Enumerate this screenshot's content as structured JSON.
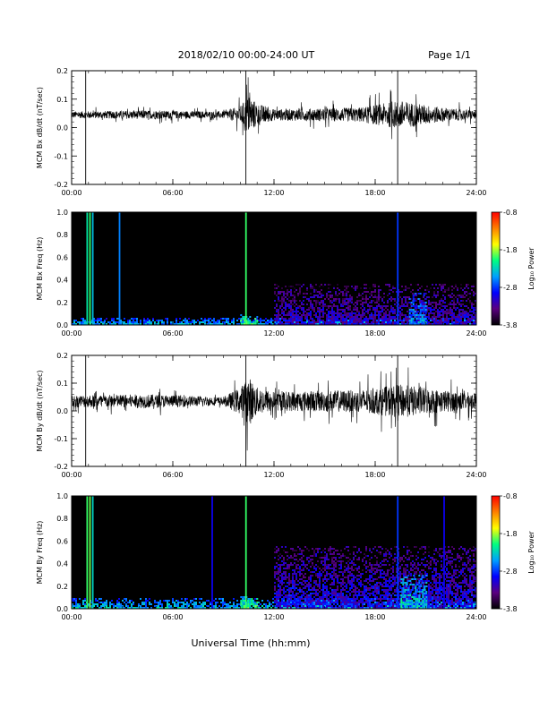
{
  "header": {
    "title": "2018/02/10  00:00-24:00 UT",
    "page": "Page 1/1"
  },
  "footer": {
    "xlabel": "Universal Time (hh:mm)"
  },
  "colorbar": {
    "label": "Log₁₀ Power",
    "ticks": [
      "-0.8",
      "-1.8",
      "-2.8",
      "-3.8"
    ],
    "range": [
      -3.8,
      -0.8
    ],
    "stops": [
      "#000000",
      "#5a0080",
      "#0000ff",
      "#00a0ff",
      "#00ff80",
      "#ffff00",
      "#ff8000",
      "#ff0000"
    ]
  },
  "chart_data": [
    {
      "type": "line",
      "ylabel": "MCM Bx dB/dt (nT/sec)",
      "xlim": [
        "00:00",
        "24:00"
      ],
      "x_ticks": [
        "00:00",
        "06:00",
        "12:00",
        "18:00",
        "24:00"
      ],
      "ylim": [
        -0.2,
        0.2
      ],
      "y_ticks": [
        "0.2",
        "0.1",
        "0.0",
        "-0.1",
        "-0.2"
      ],
      "baseline": 0.045,
      "noise_envelope": [
        {
          "x": "00:00",
          "amp": 0.012
        },
        {
          "x": "04:30",
          "amp": 0.015
        },
        {
          "x": "09:00",
          "amp": 0.012
        },
        {
          "x": "10:00",
          "amp": 0.03
        },
        {
          "x": "10:30",
          "amp": 0.07
        },
        {
          "x": "11:00",
          "amp": 0.04
        },
        {
          "x": "12:00",
          "amp": 0.02
        },
        {
          "x": "17:00",
          "amp": 0.025
        },
        {
          "x": "19:30",
          "amp": 0.05
        },
        {
          "x": "22:00",
          "amp": 0.025
        },
        {
          "x": "24:00",
          "amp": 0.015
        }
      ],
      "spikes": [
        {
          "x": "00:50"
        },
        {
          "x": "10:20"
        },
        {
          "x": "19:20"
        }
      ]
    },
    {
      "type": "heatmap",
      "ylabel": "MCM Bx Freq (Hz)",
      "xlim": [
        "00:00",
        "24:00"
      ],
      "x_ticks": [
        "00:00",
        "06:00",
        "12:00",
        "18:00",
        "24:00"
      ],
      "ylim": [
        0,
        1.0
      ],
      "y_ticks": [
        "1.0",
        "0.8",
        "0.6",
        "0.4",
        "0.2",
        "0.0"
      ],
      "vertical_lines": [
        {
          "x": "00:55",
          "power": -2.2
        },
        {
          "x": "01:05",
          "power": -2.0
        },
        {
          "x": "01:15",
          "power": -2.4
        },
        {
          "x": "02:50",
          "power": -2.6
        },
        {
          "x": "10:20",
          "power": -2.0
        },
        {
          "x": "19:20",
          "power": -2.8
        }
      ],
      "activity_regions": [
        {
          "x_start": "00:00",
          "x_end": "24:00",
          "fmax": 0.06,
          "power": -2.9
        },
        {
          "x_start": "10:00",
          "x_end": "11:00",
          "fmax": 0.08,
          "power": -2.4
        },
        {
          "x_start": "12:00",
          "x_end": "24:00",
          "fmax": 0.35,
          "power": -3.5
        },
        {
          "x_start": "20:00",
          "x_end": "21:00",
          "fmax": 0.28,
          "power": -2.9
        }
      ]
    },
    {
      "type": "line",
      "ylabel": "MCM By dB/dt (nT/sec)",
      "xlim": [
        "00:00",
        "24:00"
      ],
      "x_ticks": [
        "00:00",
        "06:00",
        "12:00",
        "18:00",
        "24:00"
      ],
      "ylim": [
        -0.2,
        0.2
      ],
      "y_ticks": [
        "0.2",
        "0.1",
        "0.0",
        "-0.1",
        "-0.2"
      ],
      "baseline": 0.035,
      "noise_envelope": [
        {
          "x": "00:00",
          "amp": 0.022
        },
        {
          "x": "04:30",
          "amp": 0.025
        },
        {
          "x": "09:00",
          "amp": 0.015
        },
        {
          "x": "10:00",
          "amp": 0.05
        },
        {
          "x": "10:30",
          "amp": 0.09
        },
        {
          "x": "11:00",
          "amp": 0.05
        },
        {
          "x": "12:00",
          "amp": 0.035
        },
        {
          "x": "17:00",
          "amp": 0.04
        },
        {
          "x": "19:30",
          "amp": 0.06
        },
        {
          "x": "22:00",
          "amp": 0.04
        },
        {
          "x": "24:00",
          "amp": 0.03
        }
      ],
      "spikes": [
        {
          "x": "00:50"
        },
        {
          "x": "10:20"
        },
        {
          "x": "19:20"
        }
      ]
    },
    {
      "type": "heatmap",
      "ylabel": "MCM By Freq (Hz)",
      "xlim": [
        "00:00",
        "24:00"
      ],
      "x_ticks": [
        "00:00",
        "06:00",
        "12:00",
        "18:00",
        "24:00"
      ],
      "ylim": [
        0,
        1.0
      ],
      "y_ticks": [
        "1.0",
        "0.8",
        "0.6",
        "0.4",
        "0.2",
        "0.0"
      ],
      "vertical_lines": [
        {
          "x": "00:55",
          "power": -2.0
        },
        {
          "x": "01:05",
          "power": -1.9
        },
        {
          "x": "01:15",
          "power": -2.3
        },
        {
          "x": "08:20",
          "power": -3.0
        },
        {
          "x": "10:20",
          "power": -2.0
        },
        {
          "x": "19:20",
          "power": -2.8
        },
        {
          "x": "22:05",
          "power": -3.0
        }
      ],
      "activity_regions": [
        {
          "x_start": "00:00",
          "x_end": "24:00",
          "fmax": 0.08,
          "power": -2.8
        },
        {
          "x_start": "10:00",
          "x_end": "11:00",
          "fmax": 0.1,
          "power": -2.4
        },
        {
          "x_start": "12:00",
          "x_end": "24:00",
          "fmax": 0.55,
          "power": -3.4
        },
        {
          "x_start": "19:30",
          "x_end": "21:00",
          "fmax": 0.3,
          "power": -2.7
        }
      ]
    }
  ]
}
